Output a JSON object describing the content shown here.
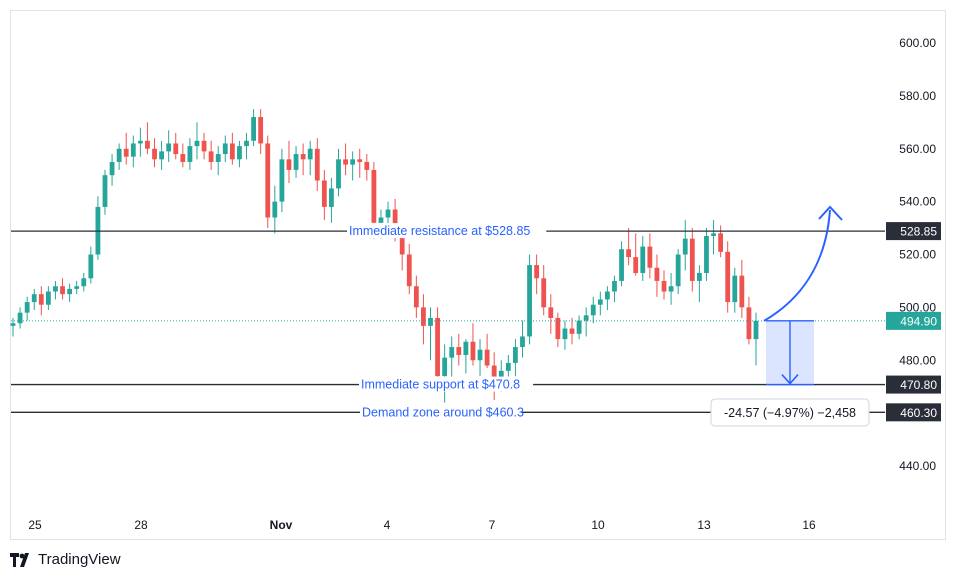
{
  "chart_data": {
    "type": "candlestick",
    "y_axis": {
      "ticks": [
        600.0,
        580.0,
        560.0,
        540.0,
        520.0,
        500.0,
        480.0,
        440.0
      ],
      "tick_labels": [
        "600.00",
        "580.00",
        "560.00",
        "540.00",
        "520.00",
        "500.00",
        "480.00",
        "440.00"
      ],
      "side": "right"
    },
    "x_axis": {
      "tick_labels": [
        "25",
        "28",
        "Nov",
        "4",
        "7",
        "10",
        "13",
        "16"
      ]
    },
    "grid": false,
    "colors": {
      "up": "#26a69a",
      "down": "#ef5350",
      "line": "#2a2e39",
      "annotation": "#2962ff",
      "projection_fill": "#cfdcff"
    },
    "levels": [
      {
        "price": 528.85,
        "label": "Immediate resistance at $528.85",
        "badge": "528.85"
      },
      {
        "price": 470.8,
        "label": "Immediate support at $470.8",
        "badge": "470.80"
      },
      {
        "price": 460.3,
        "label": "Demand zone around $460.3",
        "badge": "460.30"
      }
    ],
    "last_price": {
      "value": 494.9,
      "badge": "494.90"
    },
    "measure_label": "-24.57 (−4.97%) −2,458",
    "candles": [
      [
        493,
        496,
        489,
        494
      ],
      [
        494,
        500,
        492,
        498
      ],
      [
        498,
        504,
        495,
        502
      ],
      [
        502,
        507,
        499,
        505
      ],
      [
        505,
        508,
        497,
        501
      ],
      [
        501,
        508,
        499,
        506
      ],
      [
        506,
        510,
        503,
        508
      ],
      [
        508,
        511,
        503,
        505
      ],
      [
        505,
        509,
        502,
        507
      ],
      [
        507,
        510,
        505,
        508
      ],
      [
        508,
        513,
        506,
        511
      ],
      [
        511,
        523,
        509,
        520
      ],
      [
        520,
        542,
        518,
        538
      ],
      [
        538,
        552,
        535,
        550
      ],
      [
        550,
        558,
        546,
        555
      ],
      [
        555,
        562,
        552,
        560
      ],
      [
        560,
        566,
        554,
        557
      ],
      [
        557,
        565,
        553,
        562
      ],
      [
        562,
        568,
        557,
        563
      ],
      [
        563,
        570,
        558,
        560
      ],
      [
        560,
        564,
        553,
        556
      ],
      [
        556,
        563,
        552,
        559
      ],
      [
        559,
        567,
        555,
        562
      ],
      [
        562,
        566,
        556,
        558
      ],
      [
        558,
        562,
        553,
        555
      ],
      [
        555,
        564,
        552,
        561
      ],
      [
        561,
        570,
        556,
        563
      ],
      [
        563,
        566,
        556,
        559
      ],
      [
        559,
        563,
        552,
        555
      ],
      [
        555,
        561,
        550,
        558
      ],
      [
        558,
        565,
        555,
        562
      ],
      [
        562,
        566,
        554,
        556
      ],
      [
        556,
        563,
        553,
        561
      ],
      [
        561,
        566,
        556,
        563
      ],
      [
        563,
        575,
        561,
        572
      ],
      [
        572,
        575,
        558,
        562
      ],
      [
        562,
        565,
        530,
        534
      ],
      [
        534,
        546,
        528,
        540
      ],
      [
        540,
        560,
        536,
        556
      ],
      [
        556,
        563,
        547,
        552
      ],
      [
        552,
        561,
        549,
        558
      ],
      [
        558,
        562,
        550,
        556
      ],
      [
        556,
        563,
        550,
        560
      ],
      [
        560,
        564,
        544,
        548
      ],
      [
        548,
        552,
        533,
        538
      ],
      [
        538,
        549,
        532,
        545
      ],
      [
        545,
        560,
        542,
        556
      ],
      [
        556,
        562,
        550,
        554
      ],
      [
        554,
        559,
        548,
        556
      ],
      [
        556,
        560,
        549,
        555
      ],
      [
        555,
        558,
        548,
        552
      ],
      [
        552,
        555,
        526,
        532
      ],
      [
        532,
        537,
        526,
        534
      ],
      [
        534,
        540,
        529,
        537
      ],
      [
        537,
        541,
        525,
        528
      ],
      [
        528,
        531,
        514,
        520
      ],
      [
        520,
        524,
        505,
        508
      ],
      [
        508,
        512,
        496,
        500
      ],
      [
        500,
        505,
        486,
        493
      ],
      [
        493,
        500,
        480,
        496
      ],
      [
        496,
        500,
        468,
        474
      ],
      [
        474,
        486,
        464,
        481
      ],
      [
        481,
        489,
        472,
        485
      ],
      [
        485,
        490,
        478,
        482
      ],
      [
        482,
        488,
        475,
        487
      ],
      [
        487,
        494,
        478,
        480
      ],
      [
        480,
        488,
        474,
        484
      ],
      [
        484,
        490,
        477,
        478
      ],
      [
        478,
        483,
        465,
        471
      ],
      [
        471,
        480,
        468,
        476
      ],
      [
        476,
        482,
        470,
        479
      ],
      [
        479,
        488,
        474,
        485
      ],
      [
        485,
        495,
        481,
        489
      ],
      [
        489,
        520,
        486,
        516
      ],
      [
        516,
        520,
        505,
        511
      ],
      [
        511,
        516,
        497,
        500
      ],
      [
        500,
        505,
        490,
        496
      ],
      [
        496,
        498,
        485,
        488
      ],
      [
        488,
        495,
        484,
        492
      ],
      [
        492,
        496,
        486,
        490
      ],
      [
        490,
        497,
        488,
        495
      ],
      [
        495,
        500,
        489,
        497
      ],
      [
        497,
        504,
        494,
        501
      ],
      [
        501,
        506,
        497,
        503
      ],
      [
        503,
        508,
        499,
        506
      ],
      [
        506,
        512,
        502,
        510
      ],
      [
        510,
        525,
        508,
        522
      ],
      [
        522,
        530,
        516,
        519
      ],
      [
        519,
        528,
        512,
        513
      ],
      [
        513,
        527,
        510,
        523
      ],
      [
        523,
        528,
        511,
        515
      ],
      [
        515,
        520,
        504,
        510
      ],
      [
        510,
        514,
        503,
        506
      ],
      [
        506,
        513,
        501,
        508
      ],
      [
        508,
        522,
        505,
        520
      ],
      [
        520,
        533,
        514,
        526
      ],
      [
        526,
        530,
        506,
        510
      ],
      [
        510,
        516,
        502,
        513
      ],
      [
        513,
        530,
        510,
        527
      ],
      [
        527,
        533,
        520,
        528
      ],
      [
        528,
        531,
        519,
        521
      ],
      [
        521,
        525,
        498,
        502
      ],
      [
        502,
        515,
        498,
        512
      ],
      [
        512,
        518,
        496,
        500
      ],
      [
        500,
        504,
        486,
        488
      ],
      [
        488,
        498,
        478,
        494.9
      ]
    ]
  },
  "brand": "TradingView"
}
